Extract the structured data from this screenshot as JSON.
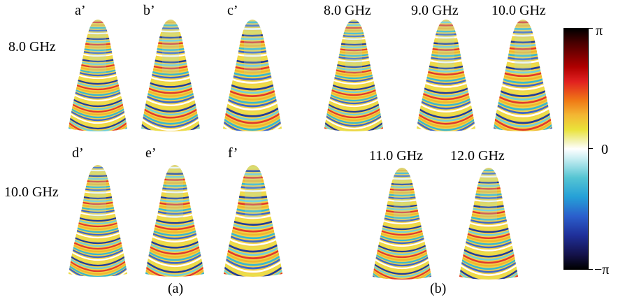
{
  "panel_a": {
    "row1_label": "8.0 GHz",
    "row2_label": "10.0 GHz",
    "tiles": [
      "a’",
      "b’",
      "c’",
      "d’",
      "e’",
      "f’"
    ],
    "caption": "(a)"
  },
  "panel_b": {
    "row1": [
      "8.0 GHz",
      "9.0 GHz",
      "10.0 GHz"
    ],
    "row2": [
      "11.0 GHz",
      "12.0 GHz"
    ],
    "caption": "(b)"
  },
  "colorbar": {
    "max_label": "π",
    "mid_label": "0",
    "min_label": "−π",
    "colors": [
      "#000000",
      "#b00000",
      "#f07a16",
      "#eae23a",
      "#ffffff",
      "#55c5d3",
      "#2b5fcc",
      "#14124a",
      "#000000"
    ]
  }
}
